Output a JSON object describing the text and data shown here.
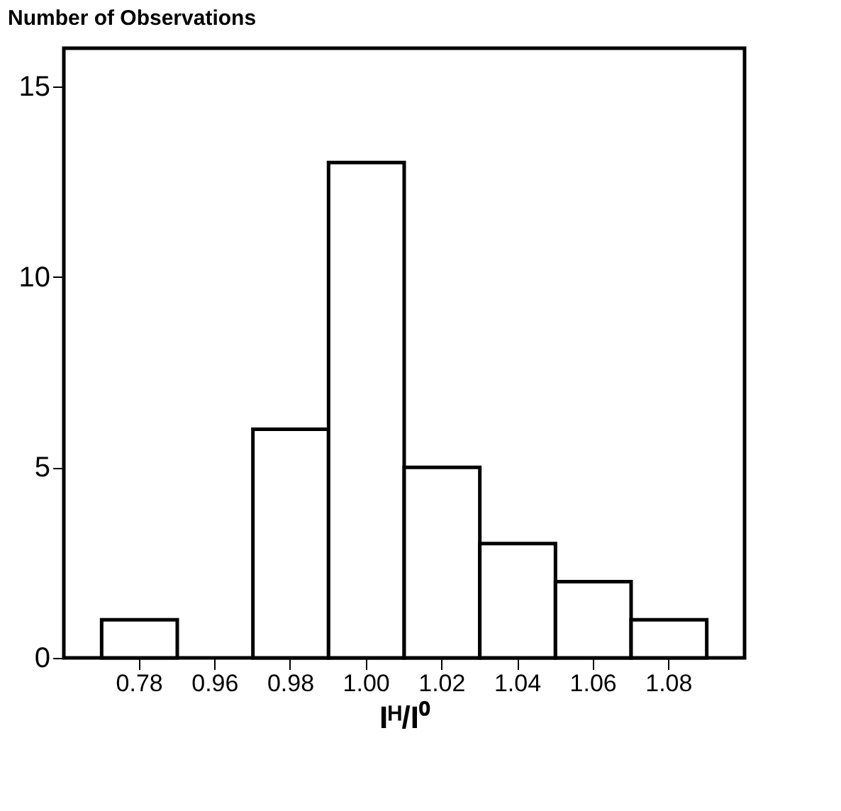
{
  "chart_data": {
    "type": "bar",
    "ylabel": "Number of Observations",
    "xlabel": "Iᴴ/I⁰",
    "categories": [
      "0.78",
      "0.96",
      "0.98",
      "1.00",
      "1.02",
      "1.04",
      "1.06",
      "1.08"
    ],
    "values": [
      1,
      0,
      6,
      13,
      5,
      3,
      2,
      1
    ],
    "color": "#ffffff",
    "ylim": [
      0,
      16
    ],
    "yticks": [
      0,
      5,
      10,
      15
    ],
    "grid": false
  }
}
